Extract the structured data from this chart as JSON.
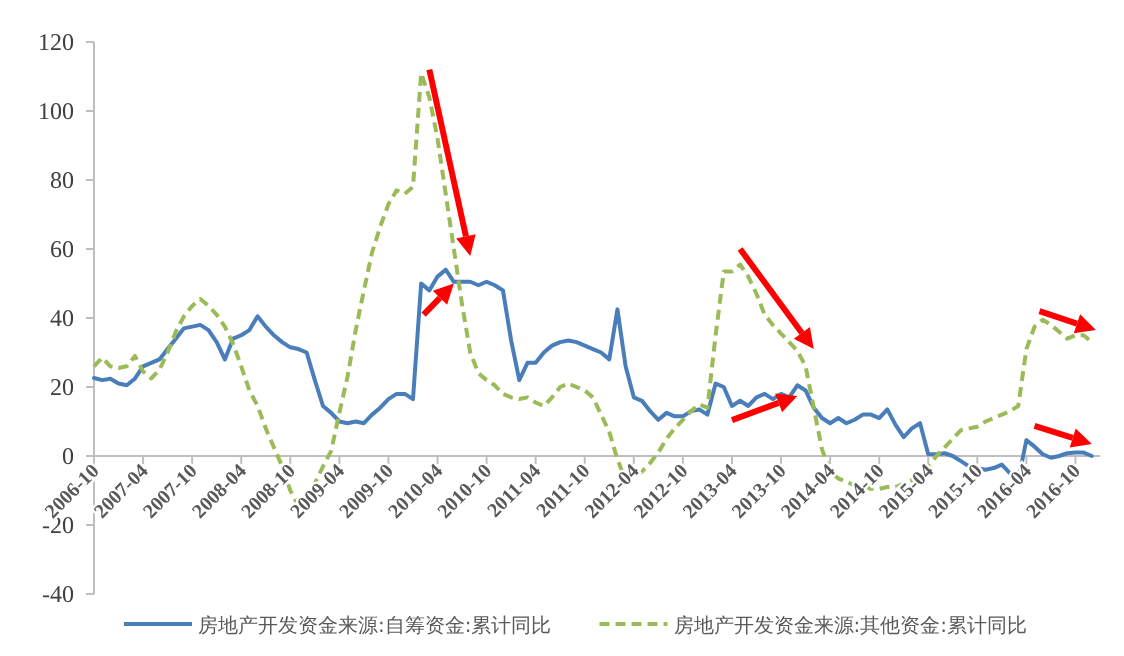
{
  "chart_data": {
    "type": "line",
    "x": [
      "2006-10",
      "2006-11",
      "2006-12",
      "2007-01",
      "2007-02",
      "2007-03",
      "2007-04",
      "2007-05",
      "2007-06",
      "2007-07",
      "2007-08",
      "2007-09",
      "2007-10",
      "2007-11",
      "2007-12",
      "2008-01",
      "2008-02",
      "2008-03",
      "2008-04",
      "2008-05",
      "2008-06",
      "2008-07",
      "2008-08",
      "2008-09",
      "2008-10",
      "2008-11",
      "2008-12",
      "2009-01",
      "2009-02",
      "2009-03",
      "2009-04",
      "2009-05",
      "2009-06",
      "2009-07",
      "2009-08",
      "2009-09",
      "2009-10",
      "2009-11",
      "2009-12",
      "2010-01",
      "2010-02",
      "2010-03",
      "2010-04",
      "2010-05",
      "2010-06",
      "2010-07",
      "2010-08",
      "2010-09",
      "2010-10",
      "2010-11",
      "2010-12",
      "2011-01",
      "2011-02",
      "2011-03",
      "2011-04",
      "2011-05",
      "2011-06",
      "2011-07",
      "2011-08",
      "2011-09",
      "2011-10",
      "2011-11",
      "2011-12",
      "2012-01",
      "2012-02",
      "2012-03",
      "2012-04",
      "2012-05",
      "2012-06",
      "2012-07",
      "2012-08",
      "2012-09",
      "2012-10",
      "2012-11",
      "2012-12",
      "2013-01",
      "2013-02",
      "2013-03",
      "2013-04",
      "2013-05",
      "2013-06",
      "2013-07",
      "2013-08",
      "2013-09",
      "2013-10",
      "2013-11",
      "2013-12",
      "2014-01",
      "2014-02",
      "2014-03",
      "2014-04",
      "2014-05",
      "2014-06",
      "2014-07",
      "2014-08",
      "2014-09",
      "2014-10",
      "2014-11",
      "2014-12",
      "2015-01",
      "2015-02",
      "2015-03",
      "2015-04",
      "2015-05",
      "2015-06",
      "2015-07",
      "2015-08",
      "2015-09",
      "2015-10",
      "2015-11",
      "2015-12",
      "2016-01",
      "2016-02",
      "2016-03",
      "2016-04",
      "2016-05",
      "2016-06",
      "2016-07",
      "2016-08",
      "2016-09",
      "2016-10",
      "2016-11",
      "2016-12"
    ],
    "series": [
      {
        "name": "房地产开发资金来源:自筹资金:累计同比",
        "color": "#4a7ebb",
        "line_style": "solid",
        "values": [
          22.6,
          22,
          22.4,
          21,
          20.5,
          22.4,
          26,
          27,
          28,
          31,
          34,
          37,
          37.5,
          38,
          36.5,
          33,
          28,
          34,
          35,
          36.5,
          40.5,
          37.5,
          35,
          33,
          31.5,
          31,
          30,
          22,
          14.5,
          12.5,
          10,
          9.5,
          10,
          9.5,
          12,
          14,
          16.5,
          18,
          18,
          16.5,
          50,
          48,
          52,
          54,
          50.5,
          50.5,
          50.5,
          49.5,
          50.5,
          49.5,
          48,
          33.5,
          22,
          27,
          27,
          30,
          32,
          33,
          33.5,
          33,
          32,
          31,
          30,
          28,
          42.5,
          26,
          17,
          16,
          13,
          10.5,
          12.5,
          11.5,
          11.5,
          13,
          13.5,
          12,
          21,
          20,
          14.5,
          16,
          14.5,
          17,
          18,
          16.5,
          18,
          17,
          20.5,
          19,
          14,
          11,
          9.5,
          11,
          9.5,
          10.5,
          12,
          12,
          11,
          13.5,
          9,
          5.5,
          8,
          9.5,
          0.5,
          0.5,
          0.8,
          0,
          -1.5,
          -3,
          -3.5,
          -4,
          -3.5,
          -2.5,
          -5,
          -7,
          4.6,
          2.7,
          0.5,
          -0.5,
          0,
          0.8,
          1,
          1,
          0
        ]
      },
      {
        "name": "房地产开发资金来源:其他资金:累计同比",
        "color": "#9bbb59",
        "line_style": "dashed",
        "values": [
          26,
          28.5,
          26,
          25.5,
          26,
          29,
          24.5,
          22.5,
          25,
          30,
          36,
          40.5,
          43.5,
          45.5,
          43.5,
          41,
          37.5,
          32.5,
          26,
          19,
          14.5,
          8,
          2.5,
          -3,
          -10,
          -14.5,
          -13,
          -8,
          -3,
          1.5,
          12.5,
          23,
          36.5,
          48,
          59,
          66.5,
          73,
          77,
          76,
          78,
          111,
          104,
          92,
          76,
          60,
          44,
          30,
          24,
          22,
          20.5,
          18,
          17,
          16.5,
          17,
          15.5,
          14.5,
          17,
          20,
          21,
          20,
          19,
          17,
          12,
          7,
          -1,
          -7,
          -6,
          -4.5,
          -2,
          1,
          5,
          8,
          10.5,
          13,
          15,
          14,
          35,
          53.5,
          53.5,
          55.5,
          52,
          47,
          41,
          38,
          35.5,
          33,
          30.5,
          26,
          14,
          2,
          -4.5,
          -6.5,
          -7.5,
          -8.5,
          -9,
          -9.5,
          -9.5,
          -9,
          -9,
          -8,
          -7,
          -5,
          -3,
          0,
          2.5,
          5,
          7.5,
          8,
          8.5,
          10,
          11,
          12,
          13,
          14.5,
          31,
          37.5,
          39.5,
          38,
          36,
          34,
          35,
          35,
          33
        ]
      }
    ],
    "xlim": [
      "2006-10",
      "2017-01"
    ],
    "xticks": [
      "2006-10",
      "2007-04",
      "2007-10",
      "2008-04",
      "2008-10",
      "2009-04",
      "2009-10",
      "2010-04",
      "2010-10",
      "2011-04",
      "2011-10",
      "2012-04",
      "2012-10",
      "2013-04",
      "2013-10",
      "2014-04",
      "2014-10",
      "2015-04",
      "2015-10",
      "2016-04",
      "2016-10"
    ],
    "ylim": [
      -40,
      120
    ],
    "yticks": [
      -40,
      -20,
      0,
      20,
      40,
      60,
      80,
      100,
      120
    ],
    "grid": false,
    "legend": "bottom"
  }
}
